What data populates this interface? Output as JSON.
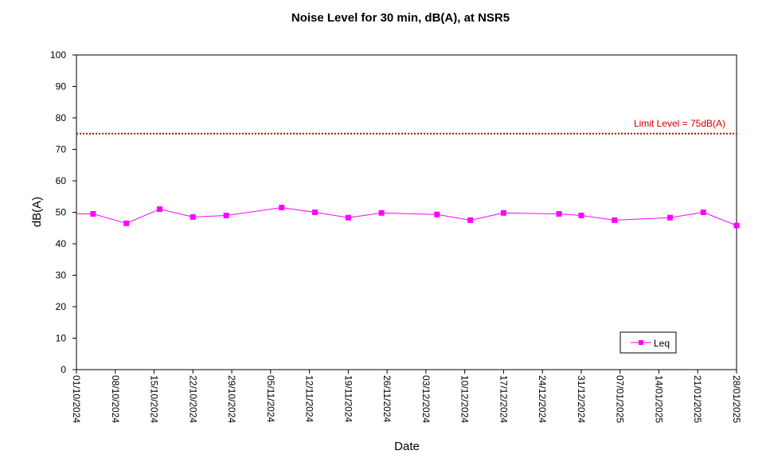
{
  "chart_data": {
    "type": "line",
    "title": "Noise Level for 30 min, dB(A), at NSR5",
    "xlabel": "Date",
    "ylabel": "dB(A)",
    "ylim": [
      0,
      100
    ],
    "yticks": [
      0,
      10,
      20,
      30,
      40,
      50,
      60,
      70,
      80,
      90,
      100
    ],
    "xlim": [
      "2024-10-01",
      "2025-01-28"
    ],
    "xticks": [
      "01/10/2024",
      "08/10/2024",
      "15/10/2024",
      "22/10/2024",
      "29/10/2024",
      "05/11/2024",
      "12/11/2024",
      "19/11/2024",
      "26/11/2024",
      "03/12/2024",
      "10/12/2024",
      "17/12/2024",
      "24/12/2024",
      "31/12/2024",
      "07/01/2025",
      "14/01/2025",
      "21/01/2025",
      "28/01/2025"
    ],
    "grid": false,
    "legend_position": "bottom-right",
    "limit_line": {
      "value": 75,
      "label": "Limit Level = 75dB(A)",
      "color": "#cc0000"
    },
    "series": [
      {
        "name": "Leq",
        "color": "#ff00ff",
        "points": [
          {
            "x": "2024-10-01",
            "y": 49.5
          },
          {
            "x": "2024-10-04",
            "y": 49.5
          },
          {
            "x": "2024-10-10",
            "y": 46.5
          },
          {
            "x": "2024-10-16",
            "y": 51.0
          },
          {
            "x": "2024-10-22",
            "y": 48.5
          },
          {
            "x": "2024-10-28",
            "y": 49.0
          },
          {
            "x": "2024-11-07",
            "y": 51.5
          },
          {
            "x": "2024-11-13",
            "y": 50.0
          },
          {
            "x": "2024-11-19",
            "y": 48.3
          },
          {
            "x": "2024-11-25",
            "y": 49.8
          },
          {
            "x": "2024-12-05",
            "y": 49.3
          },
          {
            "x": "2024-12-11",
            "y": 47.5
          },
          {
            "x": "2024-12-17",
            "y": 49.8
          },
          {
            "x": "2024-12-27",
            "y": 49.5
          },
          {
            "x": "2024-12-31",
            "y": 49.0
          },
          {
            "x": "2025-01-06",
            "y": 47.5
          },
          {
            "x": "2025-01-16",
            "y": 48.3
          },
          {
            "x": "2025-01-22",
            "y": 50.0
          },
          {
            "x": "2025-01-28",
            "y": 45.8
          }
        ]
      }
    ]
  }
}
